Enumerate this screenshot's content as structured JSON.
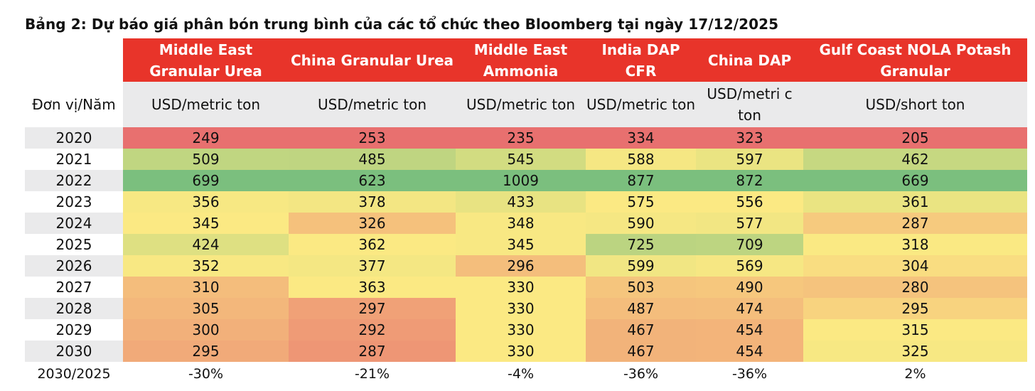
{
  "title": "Bảng 2: Dự báo giá phân bón trung bình của các tổ chức theo Bloomberg tại ngày 17/12/2025",
  "row_label_header": "Đơn vị/Năm",
  "columns": [
    {
      "name": "Middle East Granular Urea",
      "unit": "USD/metric ton"
    },
    {
      "name": "China Granular Urea",
      "unit": "USD/metric ton"
    },
    {
      "name": "Middle East Ammonia",
      "unit": "USD/metric ton"
    },
    {
      "name": "India DAP CFR",
      "unit": "USD/metric ton"
    },
    {
      "name": "China DAP",
      "unit": "USD/metri c ton"
    },
    {
      "name": "Gulf Coast NOLA Potash Granular",
      "unit": "USD/short ton"
    }
  ],
  "rows": [
    {
      "year": "2020",
      "values": [
        "249",
        "253",
        "235",
        "334",
        "323",
        "205"
      ]
    },
    {
      "year": "2021",
      "values": [
        "509",
        "485",
        "545",
        "588",
        "597",
        "462"
      ]
    },
    {
      "year": "2022",
      "values": [
        "699",
        "623",
        "1009",
        "877",
        "872",
        "669"
      ]
    },
    {
      "year": "2023",
      "values": [
        "356",
        "378",
        "433",
        "575",
        "556",
        "361"
      ]
    },
    {
      "year": "2024",
      "values": [
        "345",
        "326",
        "348",
        "590",
        "577",
        "287"
      ]
    },
    {
      "year": "2025",
      "values": [
        "424",
        "362",
        "345",
        "725",
        "709",
        "318"
      ]
    },
    {
      "year": "2026",
      "values": [
        "352",
        "377",
        "296",
        "599",
        "569",
        "304"
      ]
    },
    {
      "year": "2027",
      "values": [
        "310",
        "363",
        "330",
        "503",
        "490",
        "280"
      ]
    },
    {
      "year": "2028",
      "values": [
        "305",
        "297",
        "330",
        "487",
        "474",
        "295"
      ]
    },
    {
      "year": "2029",
      "values": [
        "300",
        "292",
        "330",
        "467",
        "454",
        "315"
      ]
    },
    {
      "year": "2030",
      "values": [
        "295",
        "287",
        "330",
        "467",
        "454",
        "325"
      ]
    }
  ],
  "change": {
    "label": "2030/2025",
    "values": [
      "-30%",
      "-21%",
      "-4%",
      "-36%",
      "-36%",
      "2%"
    ]
  },
  "colors": {
    "header_bg": "#e8342a",
    "heat_min": "#e8706f",
    "heat_mid": "#fbe983",
    "heat_max": "#7bbf7e",
    "grey_band": "#eaeaeb"
  }
}
